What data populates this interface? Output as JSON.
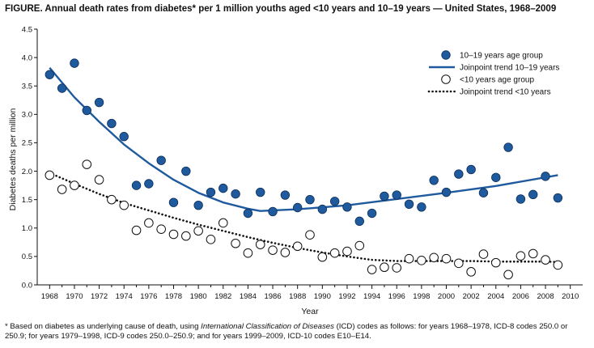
{
  "figure": {
    "title": "FIGURE. Annual death rates from diabetes* per 1 million youths aged <10 years and 10–19 years — United States, 1968–2009",
    "footnote": {
      "prefix": "* Based on diabetes as underlying cause of death, using ",
      "italic": "International Classification of Diseases",
      "suffix": " (ICD) codes as follows: for years 1968–1978, ICD-8 codes 250.0 or 250.9; for years 1979–1998, ICD-9 codes 250.0–250.9; and for years 1999–2009, ICD-10 codes E10–E14."
    }
  },
  "chart_data": {
    "type": "scatter",
    "title": "",
    "xlabel": "Year",
    "ylabel": "Diabetes deaths per million",
    "xlim": [
      1967,
      2011
    ],
    "ylim": [
      0,
      4.5
    ],
    "xticks": [
      "1968",
      "1970",
      "1972",
      "1974",
      "1976",
      "1978",
      "1980",
      "1982",
      "1984",
      "1986",
      "1988",
      "1990",
      "1992",
      "1994",
      "1996",
      "1998",
      "2000",
      "2002",
      "2004",
      "2006",
      "2008",
      "2010"
    ],
    "yticks": [
      "0.0",
      "0.5",
      "1.0",
      "1.5",
      "2.0",
      "2.5",
      "3.0",
      "3.5",
      "4.0",
      "4.5"
    ],
    "grid": false,
    "legend_position": "top-right",
    "series": [
      {
        "name": "10–19 years age group",
        "kind": "points",
        "marker": "filled-circle",
        "color": "#1f5a9e",
        "x": [
          1968,
          1969,
          1970,
          1971,
          1972,
          1973,
          1974,
          1975,
          1976,
          1977,
          1978,
          1979,
          1980,
          1981,
          1982,
          1983,
          1984,
          1985,
          1986,
          1987,
          1988,
          1989,
          1990,
          1991,
          1992,
          1993,
          1994,
          1995,
          1996,
          1997,
          1998,
          1999,
          2000,
          2001,
          2002,
          2003,
          2004,
          2005,
          2006,
          2007,
          2008,
          2009
        ],
        "y": [
          3.7,
          3.46,
          3.9,
          3.07,
          3.21,
          2.84,
          2.61,
          1.75,
          1.78,
          2.19,
          1.45,
          2.0,
          1.4,
          1.63,
          1.7,
          1.6,
          1.26,
          1.63,
          1.29,
          1.58,
          1.36,
          1.5,
          1.33,
          1.47,
          1.37,
          1.12,
          1.26,
          1.56,
          1.58,
          1.42,
          1.37,
          1.84,
          1.63,
          1.95,
          2.03,
          1.62,
          1.89,
          2.42,
          1.51,
          1.59,
          1.91,
          1.53
        ]
      },
      {
        "name": "Joinpoint trend 10–19 years",
        "kind": "line",
        "style": "solid",
        "color": "#1f5a9e",
        "x": [
          1968,
          1970,
          1972,
          1974,
          1976,
          1978,
          1980,
          1982,
          1984,
          1985,
          1988,
          1992,
          1996,
          2000,
          2004,
          2009
        ],
        "y": [
          3.82,
          3.3,
          2.87,
          2.47,
          2.14,
          1.85,
          1.62,
          1.45,
          1.34,
          1.3,
          1.33,
          1.4,
          1.51,
          1.62,
          1.74,
          1.93
        ]
      },
      {
        "name": "<10 years age group",
        "kind": "points",
        "marker": "open-circle",
        "color": "#111111",
        "x": [
          1968,
          1969,
          1970,
          1971,
          1972,
          1973,
          1974,
          1975,
          1976,
          1977,
          1978,
          1979,
          1980,
          1981,
          1982,
          1983,
          1984,
          1985,
          1986,
          1987,
          1988,
          1989,
          1990,
          1991,
          1992,
          1993,
          1994,
          1995,
          1996,
          1997,
          1998,
          1999,
          2000,
          2001,
          2002,
          2003,
          2004,
          2005,
          2006,
          2007,
          2008,
          2009
        ],
        "y": [
          1.93,
          1.68,
          1.75,
          2.12,
          1.85,
          1.5,
          1.4,
          0.96,
          1.09,
          0.98,
          0.89,
          0.86,
          0.95,
          0.8,
          1.09,
          0.73,
          0.56,
          0.71,
          0.61,
          0.57,
          0.68,
          0.88,
          0.49,
          0.56,
          0.59,
          0.69,
          0.27,
          0.31,
          0.3,
          0.46,
          0.43,
          0.48,
          0.46,
          0.38,
          0.23,
          0.54,
          0.39,
          0.18,
          0.51,
          0.55,
          0.44,
          0.35
        ]
      },
      {
        "name": "Joinpoint trend <10 years",
        "kind": "line",
        "style": "dotted",
        "color": "#111111",
        "x": [
          1968,
          1970,
          1972,
          1974,
          1976,
          1978,
          1980,
          1982,
          1984,
          1986,
          1988,
          1990,
          1992,
          1994,
          1996,
          1998,
          2000,
          2002,
          2004,
          2006,
          2008,
          2009
        ],
        "y": [
          1.97,
          1.78,
          1.6,
          1.44,
          1.31,
          1.18,
          1.06,
          0.95,
          0.84,
          0.74,
          0.65,
          0.57,
          0.5,
          0.44,
          0.42,
          0.42,
          0.42,
          0.42,
          0.41,
          0.41,
          0.41,
          0.4
        ]
      }
    ]
  }
}
